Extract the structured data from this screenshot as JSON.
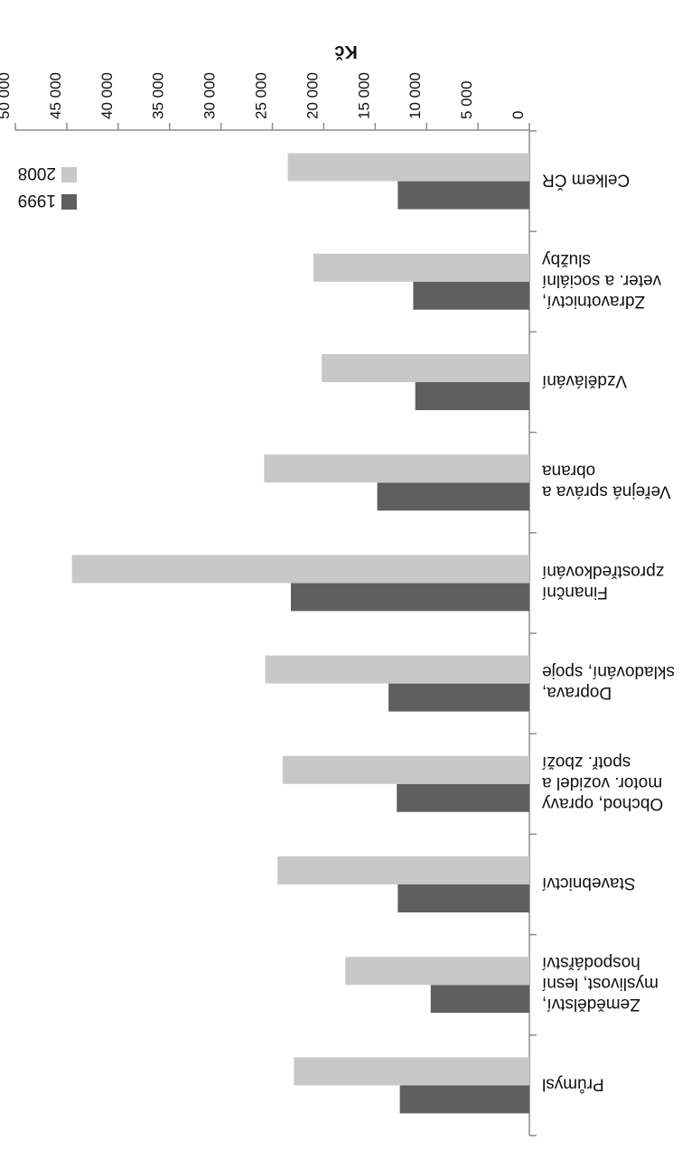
{
  "chart_data": {
    "type": "bar",
    "orientation": "horizontal",
    "rotated_180": true,
    "title": "",
    "xlabel": "Kč",
    "ylabel": "",
    "xlim": [
      0,
      50000
    ],
    "x_ticks": [
      "0",
      "5 000",
      "10 000",
      "15 000",
      "20 000",
      "25 000",
      "30 000",
      "35 000",
      "40 000",
      "45 000",
      "50 000"
    ],
    "grid": false,
    "legend": {
      "position": "inside-left"
    },
    "categories": [
      [
        "Průmysl"
      ],
      [
        "Zemědělství,",
        "myslivost, lesní",
        "hospodářství"
      ],
      [
        "Stavebnictví"
      ],
      [
        "Obchod, opravy",
        "motor. vozidel a",
        "spotř. zboží"
      ],
      [
        "Doprava,",
        "skladování, spoje"
      ],
      [
        "Finanční",
        "zprostředkování"
      ],
      [
        "Veřejná správa a",
        "obrana"
      ],
      [
        "Vzdělávání"
      ],
      [
        "Zdravotnictví,",
        "veter. a sociální",
        "služby"
      ],
      [
        "Celkem ČR"
      ]
    ],
    "series": [
      {
        "name": "2008",
        "color": "#c8c8c8",
        "values": [
          22900,
          17900,
          24500,
          24000,
          25700,
          44500,
          25800,
          20200,
          21000,
          23500
        ]
      },
      {
        "name": "1999",
        "color": "#5f5f5f",
        "values": [
          12600,
          9600,
          12800,
          12900,
          13700,
          23200,
          14800,
          11100,
          11300,
          12800
        ]
      }
    ]
  }
}
